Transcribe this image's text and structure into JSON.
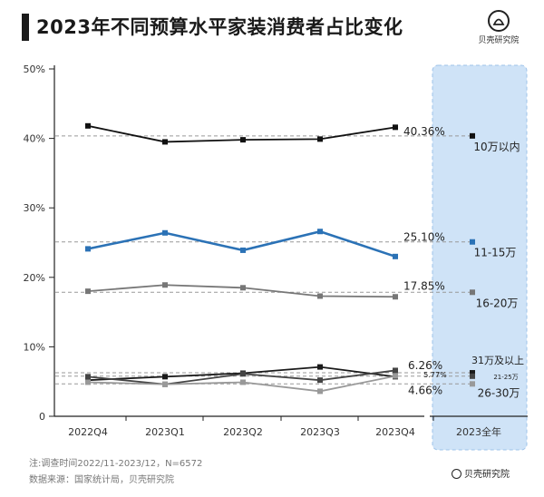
{
  "header": {
    "title": "2023年不同预算水平家装消费者占比变化"
  },
  "brand": {
    "name": "贝壳研究院"
  },
  "notes": {
    "survey": "注:调查时间2022/11-2023/12，N=6572",
    "source": "数据来源：国家统计局，贝壳研究院"
  },
  "chart_data": {
    "type": "line",
    "title": "2023年不同预算水平家装消费者占比变化",
    "categories": [
      "2022Q4",
      "2023Q1",
      "2023Q2",
      "2023Q3",
      "2023Q4"
    ],
    "annual_category": "2023全年",
    "ylim": [
      0,
      50
    ],
    "yticks": [
      0,
      10,
      20,
      30,
      40,
      50
    ],
    "ytick_labels": [
      "0",
      "10%",
      "20%",
      "30%",
      "40%",
      "50%"
    ],
    "series": [
      {
        "name": "10万以内",
        "color": "#111111",
        "values": [
          41.8,
          39.5,
          39.8,
          39.9,
          41.6
        ],
        "annual": 40.36,
        "annual_label": "40.36%"
      },
      {
        "name": "11-15万",
        "color": "#2b72b6",
        "values": [
          24.1,
          26.4,
          23.9,
          26.6,
          23.0
        ],
        "annual": 25.1,
        "annual_label": "25.10%"
      },
      {
        "name": "16-20万",
        "color": "#777777",
        "values": [
          18.0,
          18.9,
          18.5,
          17.3,
          17.2
        ],
        "annual": 17.85,
        "annual_label": "17.85%"
      },
      {
        "name": "31万及以上",
        "color": "#1a1a1a",
        "values": [
          5.2,
          5.7,
          6.2,
          7.1,
          5.7
        ],
        "annual": 6.26,
        "annual_label": "6.26%"
      },
      {
        "name": "21-25万",
        "color": "#444444",
        "values": [
          5.7,
          4.6,
          6.1,
          5.2,
          6.6
        ],
        "annual": 5.77,
        "annual_label": "5.77%"
      },
      {
        "name": "26-30万",
        "color": "#999999",
        "values": [
          4.9,
          4.6,
          4.9,
          3.6,
          5.8
        ],
        "annual": 4.66,
        "annual_label": "4.66%"
      }
    ]
  }
}
